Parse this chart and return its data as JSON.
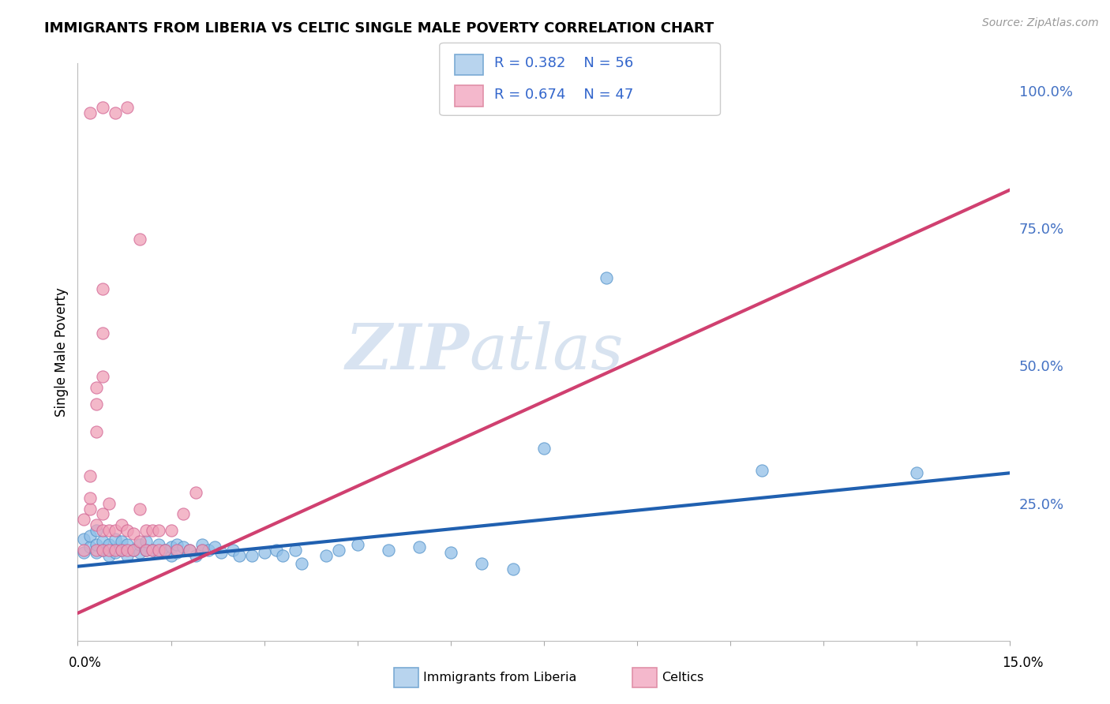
{
  "title": "IMMIGRANTS FROM LIBERIA VS CELTIC SINGLE MALE POVERTY CORRELATION CHART",
  "source": "Source: ZipAtlas.com",
  "ylabel": "Single Male Poverty",
  "watermark_zip": "ZIP",
  "watermark_atlas": "atlas",
  "blue_color": "#92C0E8",
  "pink_color": "#F0A0B8",
  "blue_line_color": "#2060B0",
  "pink_line_color": "#D04070",
  "blue_scatter": [
    [
      0.001,
      0.16
    ],
    [
      0.001,
      0.185
    ],
    [
      0.002,
      0.17
    ],
    [
      0.002,
      0.19
    ],
    [
      0.003,
      0.16
    ],
    [
      0.003,
      0.175
    ],
    [
      0.003,
      0.2
    ],
    [
      0.004,
      0.165
    ],
    [
      0.004,
      0.18
    ],
    [
      0.005,
      0.155
    ],
    [
      0.005,
      0.175
    ],
    [
      0.006,
      0.16
    ],
    [
      0.006,
      0.185
    ],
    [
      0.007,
      0.165
    ],
    [
      0.007,
      0.18
    ],
    [
      0.008,
      0.155
    ],
    [
      0.008,
      0.175
    ],
    [
      0.009,
      0.165
    ],
    [
      0.01,
      0.16
    ],
    [
      0.01,
      0.175
    ],
    [
      0.011,
      0.165
    ],
    [
      0.011,
      0.18
    ],
    [
      0.012,
      0.165
    ],
    [
      0.013,
      0.16
    ],
    [
      0.013,
      0.175
    ],
    [
      0.014,
      0.165
    ],
    [
      0.015,
      0.155
    ],
    [
      0.015,
      0.17
    ],
    [
      0.016,
      0.16
    ],
    [
      0.016,
      0.175
    ],
    [
      0.017,
      0.17
    ],
    [
      0.018,
      0.165
    ],
    [
      0.019,
      0.155
    ],
    [
      0.02,
      0.165
    ],
    [
      0.02,
      0.175
    ],
    [
      0.021,
      0.165
    ],
    [
      0.022,
      0.17
    ],
    [
      0.023,
      0.16
    ],
    [
      0.025,
      0.165
    ],
    [
      0.026,
      0.155
    ],
    [
      0.028,
      0.155
    ],
    [
      0.03,
      0.16
    ],
    [
      0.032,
      0.165
    ],
    [
      0.033,
      0.155
    ],
    [
      0.035,
      0.165
    ],
    [
      0.036,
      0.14
    ],
    [
      0.04,
      0.155
    ],
    [
      0.042,
      0.165
    ],
    [
      0.045,
      0.175
    ],
    [
      0.05,
      0.165
    ],
    [
      0.055,
      0.17
    ],
    [
      0.06,
      0.16
    ],
    [
      0.065,
      0.14
    ],
    [
      0.07,
      0.13
    ],
    [
      0.075,
      0.35
    ],
    [
      0.085,
      0.66
    ],
    [
      0.11,
      0.31
    ],
    [
      0.135,
      0.305
    ]
  ],
  "pink_scatter": [
    [
      0.001,
      0.165
    ],
    [
      0.001,
      0.22
    ],
    [
      0.002,
      0.24
    ],
    [
      0.002,
      0.26
    ],
    [
      0.002,
      0.3
    ],
    [
      0.003,
      0.165
    ],
    [
      0.003,
      0.21
    ],
    [
      0.003,
      0.38
    ],
    [
      0.003,
      0.43
    ],
    [
      0.003,
      0.46
    ],
    [
      0.004,
      0.165
    ],
    [
      0.004,
      0.2
    ],
    [
      0.004,
      0.23
    ],
    [
      0.004,
      0.48
    ],
    [
      0.004,
      0.56
    ],
    [
      0.004,
      0.64
    ],
    [
      0.005,
      0.2
    ],
    [
      0.005,
      0.25
    ],
    [
      0.005,
      0.165
    ],
    [
      0.006,
      0.165
    ],
    [
      0.006,
      0.2
    ],
    [
      0.007,
      0.165
    ],
    [
      0.007,
      0.21
    ],
    [
      0.008,
      0.165
    ],
    [
      0.008,
      0.2
    ],
    [
      0.009,
      0.165
    ],
    [
      0.009,
      0.195
    ],
    [
      0.01,
      0.18
    ],
    [
      0.01,
      0.24
    ],
    [
      0.011,
      0.165
    ],
    [
      0.011,
      0.2
    ],
    [
      0.012,
      0.2
    ],
    [
      0.012,
      0.165
    ],
    [
      0.013,
      0.165
    ],
    [
      0.013,
      0.2
    ],
    [
      0.014,
      0.165
    ],
    [
      0.015,
      0.2
    ],
    [
      0.016,
      0.165
    ],
    [
      0.017,
      0.23
    ],
    [
      0.018,
      0.165
    ],
    [
      0.019,
      0.27
    ],
    [
      0.02,
      0.165
    ],
    [
      0.002,
      0.96
    ],
    [
      0.004,
      0.97
    ],
    [
      0.006,
      0.96
    ],
    [
      0.008,
      0.97
    ],
    [
      0.01,
      0.73
    ]
  ],
  "xlim": [
    0.0,
    0.15
  ],
  "ylim": [
    0.0,
    1.05
  ],
  "right_yticks": [
    1.0,
    0.75,
    0.5,
    0.25,
    0.0
  ],
  "right_yticklabels": [
    "100.0%",
    "75.0%",
    "50.0%",
    "25.0%",
    ""
  ],
  "blue_line_x": [
    0.0,
    0.15
  ],
  "blue_line_y": [
    0.135,
    0.305
  ],
  "pink_line_x": [
    0.0,
    0.15
  ],
  "pink_line_y": [
    0.05,
    0.82
  ]
}
